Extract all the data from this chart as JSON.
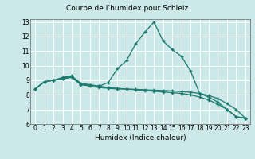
{
  "title": "Courbe de l’humidex pour Schleiz",
  "xlabel": "Humidex (Indice chaleur)",
  "xlim": [
    -0.5,
    23.5
  ],
  "ylim": [
    6,
    13.2
  ],
  "yticks": [
    6,
    7,
    8,
    9,
    10,
    11,
    12,
    13
  ],
  "xticks": [
    0,
    1,
    2,
    3,
    4,
    5,
    6,
    7,
    8,
    9,
    10,
    11,
    12,
    13,
    14,
    15,
    16,
    17,
    18,
    19,
    20,
    21,
    22,
    23
  ],
  "bg_color": "#cce8e8",
  "grid_color": "#ffffff",
  "line_color": "#1a7a6e",
  "line1_x": [
    0,
    1,
    2,
    3,
    4,
    5,
    6,
    7,
    8,
    9,
    10,
    11,
    12,
    13,
    14,
    15,
    16,
    17,
    18,
    19,
    20,
    21,
    22,
    23
  ],
  "line1_y": [
    8.4,
    8.9,
    9.0,
    9.15,
    9.25,
    8.75,
    8.65,
    8.6,
    8.85,
    9.8,
    10.35,
    11.5,
    12.3,
    13.0,
    11.7,
    11.1,
    10.65,
    9.65,
    8.1,
    7.85,
    7.5,
    7.0,
    6.5,
    6.4
  ],
  "line2_x": [
    0,
    1,
    2,
    3,
    4,
    5,
    6,
    7,
    8,
    9,
    10,
    11,
    12,
    13,
    14,
    15,
    16,
    17,
    18,
    19,
    20,
    21,
    22,
    23
  ],
  "line2_y": [
    8.4,
    8.9,
    9.0,
    9.1,
    9.2,
    8.7,
    8.6,
    8.5,
    8.45,
    8.4,
    8.4,
    8.38,
    8.35,
    8.32,
    8.3,
    8.27,
    8.22,
    8.18,
    8.1,
    7.95,
    7.75,
    7.4,
    7.0,
    6.4
  ],
  "line3_x": [
    0,
    1,
    2,
    3,
    4,
    5,
    6,
    7,
    8,
    9,
    10,
    11,
    12,
    13,
    14,
    15,
    16,
    17,
    18,
    19,
    20,
    21,
    22,
    23
  ],
  "line3_y": [
    8.4,
    8.9,
    9.0,
    9.2,
    9.3,
    8.8,
    8.7,
    8.6,
    8.5,
    8.45,
    8.4,
    8.35,
    8.3,
    8.25,
    8.2,
    8.15,
    8.1,
    8.0,
    7.85,
    7.65,
    7.35,
    7.0,
    6.5,
    6.4
  ]
}
